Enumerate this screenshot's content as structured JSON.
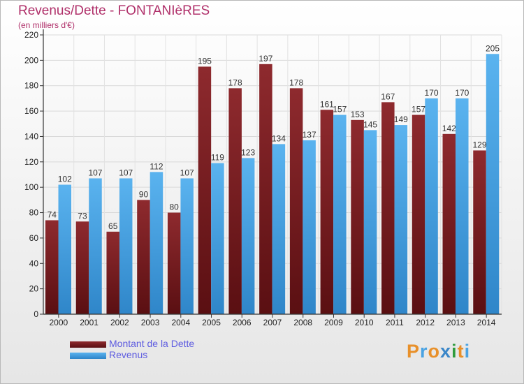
{
  "header": {
    "title": "Revenus/Dette - FONTANIèRES",
    "subtitle": "(en milliers d'€)"
  },
  "legend": {
    "items": [
      {
        "label": "Montant de la Dette",
        "color": "#7a1f23"
      },
      {
        "label": "Revenus",
        "color": "#4aa3e3"
      }
    ]
  },
  "logo": {
    "letters": [
      "P",
      "r",
      "o",
      "x",
      "i",
      "t",
      "i"
    ],
    "colors": [
      "#e8902a",
      "#4aa3e3",
      "#e8902a",
      "#3a86c8",
      "#2f9b3c",
      "#e8902a",
      "#4aa3e3"
    ]
  },
  "chart_data": {
    "type": "bar",
    "title": "Revenus/Dette - FONTANIèRES",
    "ylabel": "(en milliers d'€)",
    "categories": [
      "2000",
      "2001",
      "2002",
      "2003",
      "2004",
      "2005",
      "2006",
      "2007",
      "2008",
      "2009",
      "2010",
      "2011",
      "2012",
      "2013",
      "2014"
    ],
    "series": [
      {
        "name": "Montant de la Dette",
        "color": "#7a1f23",
        "values": [
          74,
          73,
          65,
          90,
          80,
          195,
          178,
          197,
          178,
          161,
          153,
          167,
          157,
          142,
          129
        ]
      },
      {
        "name": "Revenus",
        "color": "#4aa3e3",
        "values": [
          102,
          107,
          107,
          112,
          107,
          119,
          123,
          134,
          137,
          157,
          145,
          149,
          170,
          170,
          205
        ]
      }
    ],
    "ylim": [
      0,
      220
    ],
    "yticks": [
      0,
      20,
      40,
      60,
      80,
      100,
      120,
      140,
      160,
      180,
      200,
      220
    ],
    "grid": true,
    "legend": "bottom-left"
  }
}
